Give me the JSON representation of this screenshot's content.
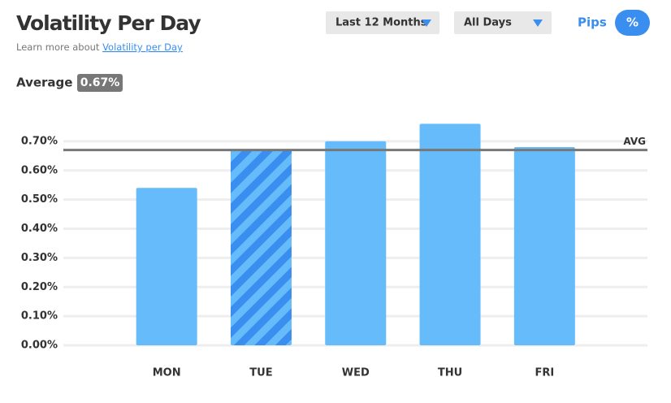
{
  "chart_data": {
    "type": "bar",
    "title": "Volatility Per Day",
    "subtitle_prefix": "Learn more about ",
    "subtitle_link": "Volatility per Day",
    "filters": [
      "Last 12 Months",
      "All Days"
    ],
    "units": [
      "Pips",
      "%"
    ],
    "average_title": "Average",
    "average": {
      "value": 0.67,
      "label": "0.67%"
    },
    "avg_line_label": "AVG",
    "categories": [
      "MON",
      "TUE",
      "WED",
      "THU",
      "FRI"
    ],
    "values": [
      0.54,
      0.67,
      0.7,
      0.76,
      0.68
    ],
    "highlight": "TUE",
    "color": "#66bbfa",
    "highlight_color": "#3a8ef0",
    "ylim": [
      0,
      0.8
    ],
    "yticks": [
      {
        "value": 0,
        "label": "0.00%"
      },
      {
        "value": 0.1,
        "label": "0.10%"
      },
      {
        "value": 0.2,
        "label": "0.20%"
      },
      {
        "value": 0.3,
        "label": "0.30%"
      },
      {
        "value": 0.4,
        "label": "0.40%"
      },
      {
        "value": 0.5,
        "label": "0.50%"
      },
      {
        "value": 0.6,
        "label": "0.60%"
      },
      {
        "value": 0.7,
        "label": "0.70%"
      }
    ],
    "grid": true
  }
}
